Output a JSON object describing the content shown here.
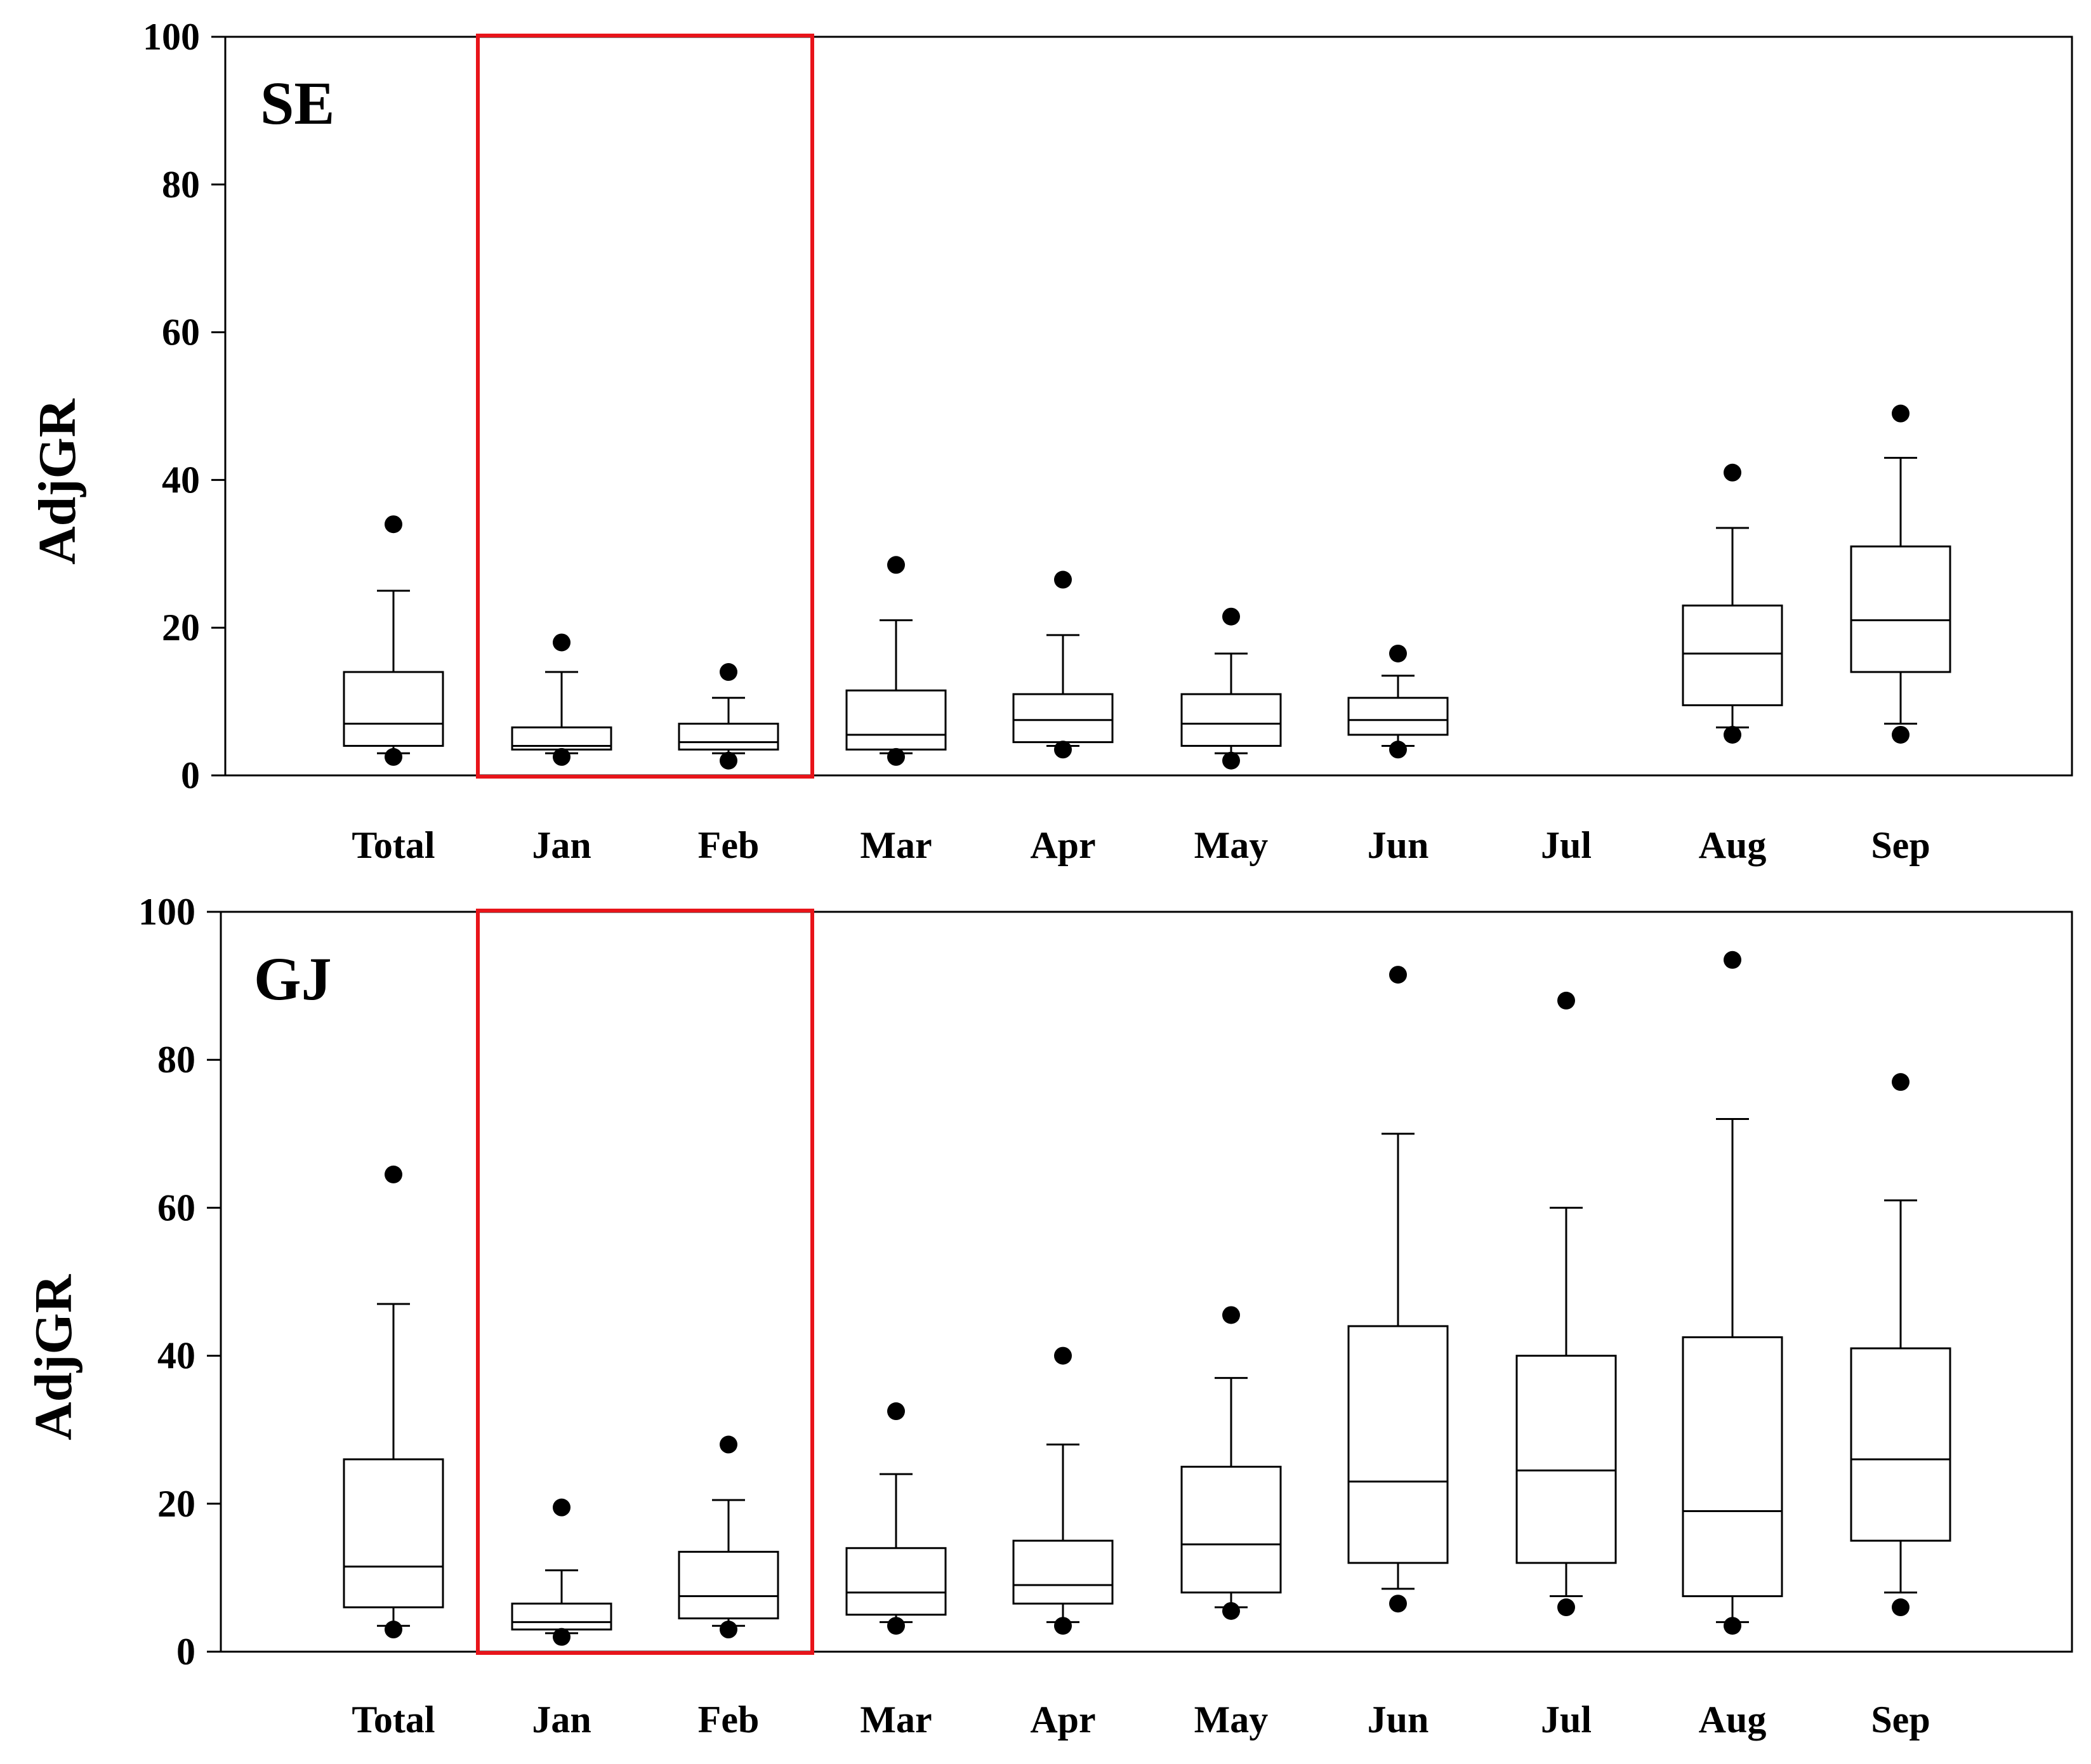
{
  "chart_data": [
    {
      "type": "box",
      "panel_label": "SE",
      "ylabel": "AdjGR",
      "ylim": [
        0,
        100
      ],
      "yticks": [
        "0",
        "20",
        "40",
        "60",
        "80",
        "100"
      ],
      "categories": [
        "Total",
        "Jan",
        "Feb",
        "Mar",
        "Apr",
        "May",
        "Jun",
        "Jul",
        "Aug",
        "Sep"
      ],
      "highlight": [
        "Jan",
        "Feb"
      ],
      "boxes": [
        {
          "cat": "Total",
          "wlo": 3,
          "q1": 4,
          "med": 7,
          "q3": 14,
          "whi": 25,
          "out": [
            2.5,
            34
          ]
        },
        {
          "cat": "Jan",
          "wlo": 3,
          "q1": 3.5,
          "med": 4,
          "q3": 6.5,
          "whi": 14,
          "out": [
            2.5,
            18
          ]
        },
        {
          "cat": "Feb",
          "wlo": 3,
          "q1": 3.5,
          "med": 4.5,
          "q3": 7,
          "whi": 10.5,
          "out": [
            2,
            14
          ]
        },
        {
          "cat": "Mar",
          "wlo": 3,
          "q1": 3.5,
          "med": 5.5,
          "q3": 11.5,
          "whi": 21,
          "out": [
            2.5,
            28.5
          ]
        },
        {
          "cat": "Apr",
          "wlo": 4,
          "q1": 4.5,
          "med": 7.5,
          "q3": 11,
          "whi": 19,
          "out": [
            3.5,
            26.5
          ]
        },
        {
          "cat": "May",
          "wlo": 3,
          "q1": 4,
          "med": 7,
          "q3": 11,
          "whi": 16.5,
          "out": [
            2,
            21.5
          ]
        },
        {
          "cat": "Jun",
          "wlo": 4,
          "q1": 5.5,
          "med": 7.5,
          "q3": 10.5,
          "whi": 13.5,
          "out": [
            3.5,
            16.5
          ]
        },
        {
          "cat": "Aug",
          "wlo": 6.5,
          "q1": 9.5,
          "med": 16.5,
          "q3": 23,
          "whi": 33.5,
          "out": [
            5.5,
            41
          ]
        },
        {
          "cat": "Sep",
          "wlo": 7,
          "q1": 14,
          "med": 21,
          "q3": 31,
          "whi": 43,
          "out": [
            5.5,
            49
          ]
        }
      ]
    },
    {
      "type": "box",
      "panel_label": "GJ",
      "ylabel": "AdjGR",
      "ylim": [
        0,
        100
      ],
      "yticks": [
        "0",
        "20",
        "40",
        "60",
        "80",
        "100"
      ],
      "categories": [
        "Total",
        "Jan",
        "Feb",
        "Mar",
        "Apr",
        "May",
        "Jun",
        "Jul",
        "Aug",
        "Sep"
      ],
      "highlight": [
        "Jan",
        "Feb"
      ],
      "boxes": [
        {
          "cat": "Total",
          "wlo": 3.5,
          "q1": 6,
          "med": 11.5,
          "q3": 26,
          "whi": 47,
          "out": [
            3,
            64.5
          ]
        },
        {
          "cat": "Jan",
          "wlo": 2.5,
          "q1": 3,
          "med": 4,
          "q3": 6.5,
          "whi": 11,
          "out": [
            2,
            19.5
          ]
        },
        {
          "cat": "Feb",
          "wlo": 3.5,
          "q1": 4.5,
          "med": 7.5,
          "q3": 13.5,
          "whi": 20.5,
          "out": [
            3,
            28
          ]
        },
        {
          "cat": "Mar",
          "wlo": 4,
          "q1": 5,
          "med": 8,
          "q3": 14,
          "whi": 24,
          "out": [
            3.5,
            32.5
          ]
        },
        {
          "cat": "Apr",
          "wlo": 4,
          "q1": 6.5,
          "med": 9,
          "q3": 15,
          "whi": 28,
          "out": [
            3.5,
            40
          ]
        },
        {
          "cat": "May",
          "wlo": 6,
          "q1": 8,
          "med": 14.5,
          "q3": 25,
          "whi": 37,
          "out": [
            5.5,
            45.5
          ]
        },
        {
          "cat": "Jun",
          "wlo": 8.5,
          "q1": 12,
          "med": 23,
          "q3": 44,
          "whi": 70,
          "out": [
            6.5,
            91.5
          ]
        },
        {
          "cat": "Jul",
          "wlo": 7.5,
          "q1": 12,
          "med": 24.5,
          "q3": 40,
          "whi": 60,
          "out": [
            6,
            88
          ]
        },
        {
          "cat": "Aug",
          "wlo": 4,
          "q1": 7.5,
          "med": 19,
          "q3": 42.5,
          "whi": 72,
          "out": [
            3.5,
            93.5
          ]
        },
        {
          "cat": "Sep",
          "wlo": 8,
          "q1": 15,
          "med": 26,
          "q3": 41,
          "whi": 61,
          "out": [
            6,
            77
          ]
        }
      ]
    }
  ]
}
